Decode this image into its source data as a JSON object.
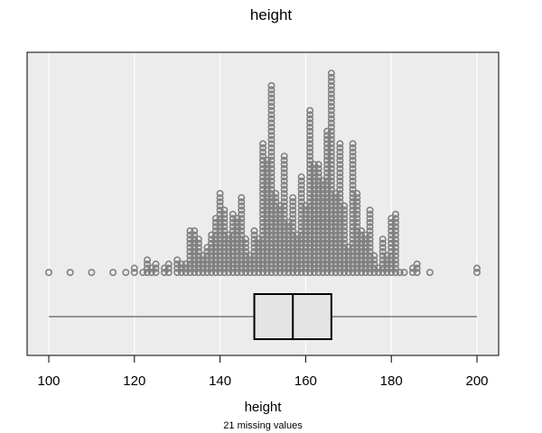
{
  "chart_data": {
    "type": "dotplot-boxplot",
    "title": "height",
    "xlabel": "height",
    "subtitle": "21 missing values",
    "xlim": [
      95,
      205
    ],
    "xticks": [
      100,
      120,
      140,
      160,
      180,
      200
    ],
    "grid": "vertical",
    "colors": {
      "panel": "#ececec",
      "grid": "#ffffff",
      "dot_stroke": "#808080",
      "box_fill": "#e4e4e4"
    },
    "dots": [
      {
        "value": 100,
        "count": 1
      },
      {
        "value": 105,
        "count": 1
      },
      {
        "value": 110,
        "count": 1
      },
      {
        "value": 115,
        "count": 1
      },
      {
        "value": 118,
        "count": 1
      },
      {
        "value": 120,
        "count": 2
      },
      {
        "value": 122,
        "count": 1
      },
      {
        "value": 123,
        "count": 4
      },
      {
        "value": 124,
        "count": 2
      },
      {
        "value": 125,
        "count": 3
      },
      {
        "value": 127,
        "count": 2
      },
      {
        "value": 128,
        "count": 3
      },
      {
        "value": 130,
        "count": 4
      },
      {
        "value": 131,
        "count": 3
      },
      {
        "value": 132,
        "count": 3
      },
      {
        "value": 133,
        "count": 11
      },
      {
        "value": 134,
        "count": 11
      },
      {
        "value": 135,
        "count": 9
      },
      {
        "value": 136,
        "count": 5
      },
      {
        "value": 137,
        "count": 7
      },
      {
        "value": 138,
        "count": 10
      },
      {
        "value": 139,
        "count": 14
      },
      {
        "value": 140,
        "count": 20
      },
      {
        "value": 141,
        "count": 16
      },
      {
        "value": 142,
        "count": 10
      },
      {
        "value": 143,
        "count": 15
      },
      {
        "value": 144,
        "count": 14
      },
      {
        "value": 145,
        "count": 19
      },
      {
        "value": 146,
        "count": 9
      },
      {
        "value": 147,
        "count": 5
      },
      {
        "value": 148,
        "count": 11
      },
      {
        "value": 149,
        "count": 9
      },
      {
        "value": 150,
        "count": 32
      },
      {
        "value": 151,
        "count": 28
      },
      {
        "value": 152,
        "count": 46
      },
      {
        "value": 153,
        "count": 20
      },
      {
        "value": 154,
        "count": 17
      },
      {
        "value": 155,
        "count": 29
      },
      {
        "value": 156,
        "count": 13
      },
      {
        "value": 157,
        "count": 19
      },
      {
        "value": 158,
        "count": 10
      },
      {
        "value": 159,
        "count": 24
      },
      {
        "value": 160,
        "count": 17
      },
      {
        "value": 161,
        "count": 40
      },
      {
        "value": 162,
        "count": 27
      },
      {
        "value": 163,
        "count": 27
      },
      {
        "value": 164,
        "count": 23
      },
      {
        "value": 165,
        "count": 35
      },
      {
        "value": 166,
        "count": 49
      },
      {
        "value": 167,
        "count": 20
      },
      {
        "value": 168,
        "count": 32
      },
      {
        "value": 169,
        "count": 17
      },
      {
        "value": 170,
        "count": 7
      },
      {
        "value": 171,
        "count": 32
      },
      {
        "value": 172,
        "count": 20
      },
      {
        "value": 173,
        "count": 11
      },
      {
        "value": 174,
        "count": 10
      },
      {
        "value": 175,
        "count": 16
      },
      {
        "value": 176,
        "count": 5
      },
      {
        "value": 177,
        "count": 2
      },
      {
        "value": 178,
        "count": 9
      },
      {
        "value": 179,
        "count": 5
      },
      {
        "value": 180,
        "count": 14
      },
      {
        "value": 181,
        "count": 15
      },
      {
        "value": 182,
        "count": 1
      },
      {
        "value": 183,
        "count": 1
      },
      {
        "value": 185,
        "count": 2
      },
      {
        "value": 186,
        "count": 3
      },
      {
        "value": 189,
        "count": 1
      },
      {
        "value": 200,
        "count": 2
      }
    ],
    "boxplot": {
      "min": 100,
      "q1": 148,
      "median": 157,
      "q3": 166,
      "max": 200
    }
  }
}
